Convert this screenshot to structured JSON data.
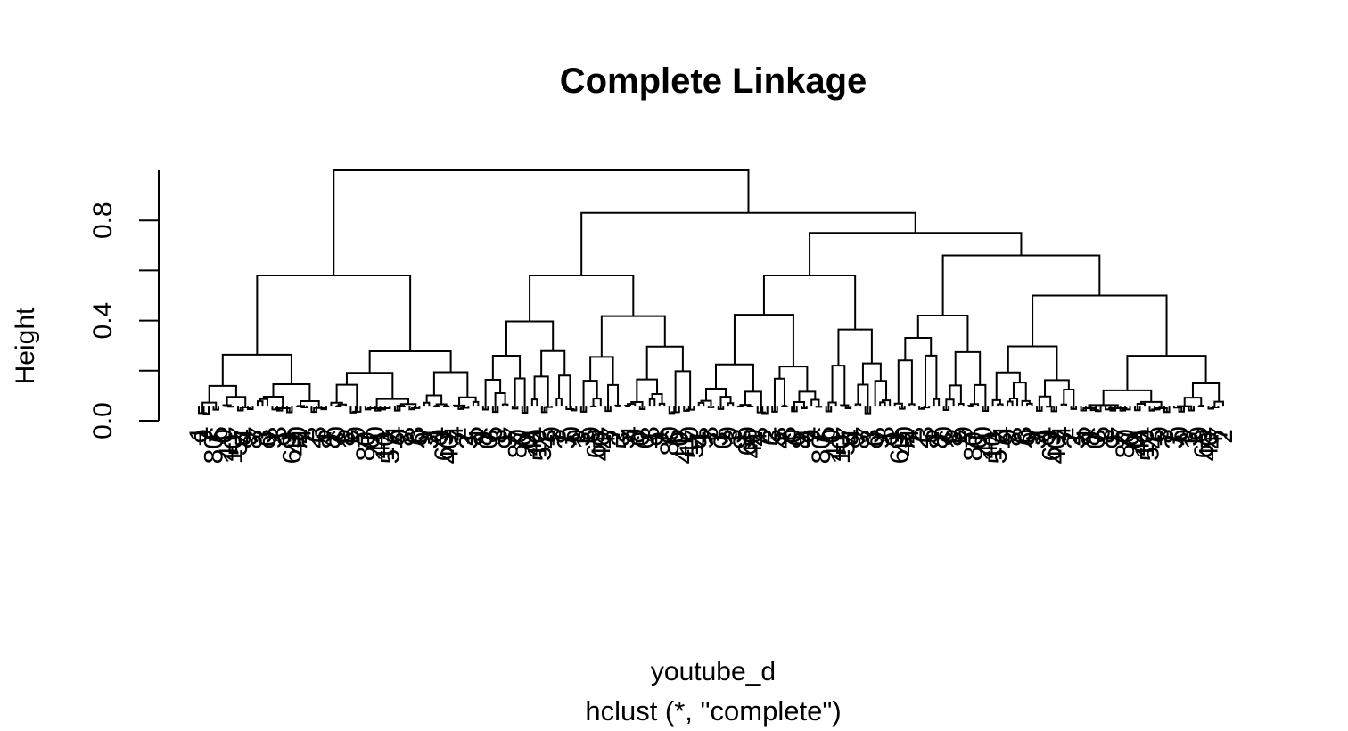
{
  "chart_data": {
    "type": "dendrogram",
    "title": "Complete Linkage",
    "xlabel": "youtube_d",
    "sub": "hclust (*, \"complete\")",
    "ylabel": "Height",
    "ylim": [
      0,
      1.0
    ],
    "yticks": [
      0.0,
      0.2,
      0.4,
      0.6,
      0.8
    ],
    "ytick_labels": [
      "0.0",
      "",
      "0.4",
      "",
      "0.8"
    ],
    "merge_heights": {
      "root": 1.0,
      "right_top": 0.83,
      "right_mid": 0.75,
      "left_main": 0.58,
      "mid_main": 0.58,
      "right_a": 0.58,
      "right_b": 0.66,
      "right_b_inner": 0.5
    },
    "leaf_label_fragments": [
      "1",
      "9",
      "7",
      "80",
      "6",
      "0",
      "41",
      "10",
      "57",
      "4",
      "9",
      "8",
      "7",
      "3",
      "0",
      "9",
      "3",
      "1",
      "9",
      "69",
      "40",
      "4",
      "7",
      "2",
      "3",
      "5",
      "4",
      "8",
      "0",
      "6",
      "8"
    ]
  }
}
